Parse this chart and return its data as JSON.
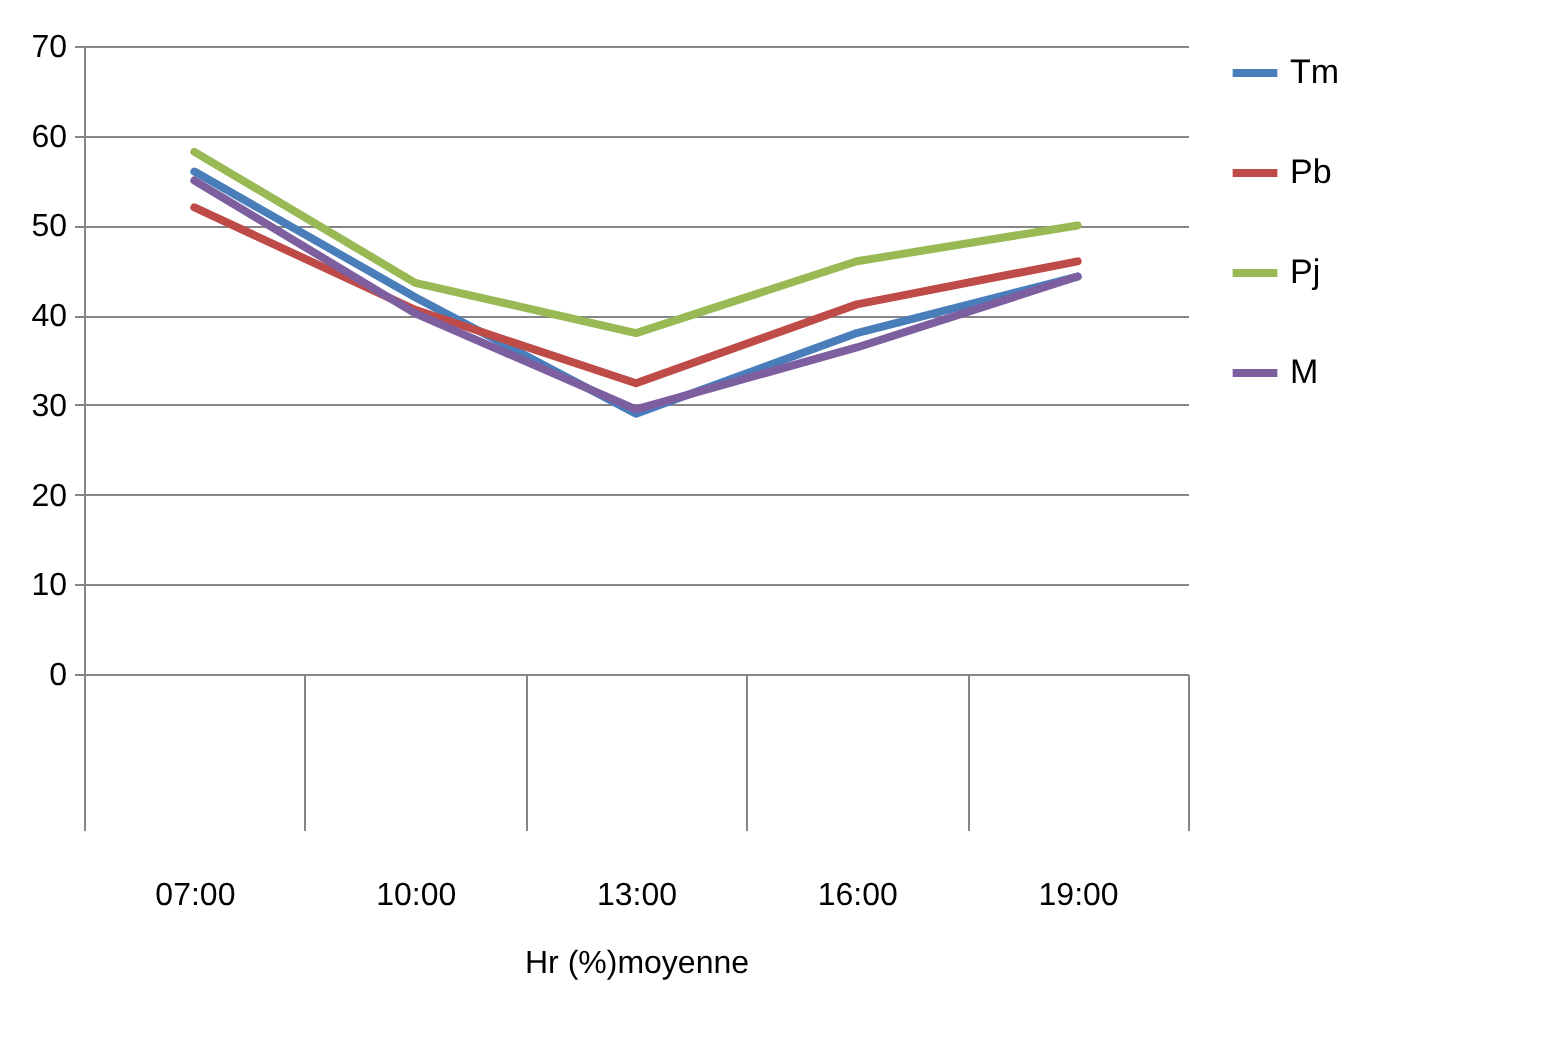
{
  "chart_data": {
    "type": "line",
    "xlabel": "Hr (%)moyenne",
    "categories": [
      "07:00",
      "10:00",
      "13:00",
      "16:00",
      "19:00"
    ],
    "series": [
      {
        "name": "Tm",
        "color": "#4a7ebb",
        "values": [
          56,
          42,
          29,
          38,
          44.3
        ]
      },
      {
        "name": "Pb",
        "color": "#be4b48",
        "values": [
          52,
          40.6,
          32.4,
          41.2,
          46
        ]
      },
      {
        "name": "Pj",
        "color": "#98b954",
        "values": [
          58.2,
          43.6,
          38,
          46,
          50
        ]
      },
      {
        "name": "M",
        "color": "#7d5fa0",
        "values": [
          55,
          40.2,
          29.5,
          36.4,
          44.3
        ]
      }
    ],
    "ylim": [
      0,
      70
    ],
    "yticks": [
      0,
      10,
      20,
      30,
      40,
      50,
      60,
      70
    ],
    "grid": "y",
    "legend": "right",
    "marker": "none",
    "line_style": "solid"
  }
}
